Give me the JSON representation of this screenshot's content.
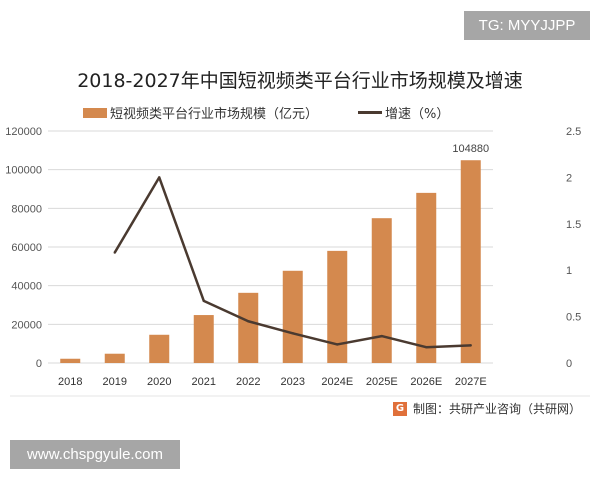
{
  "watermark_top": "TG: MYYJJPP",
  "watermark_bottom": "www.chspgyule.com",
  "source": "制图：共研产业咨询（共研网）",
  "source_logo": "G",
  "colors": {
    "bar": "#d4894e",
    "line": "#4a3a30",
    "grid": "#d9d9d9"
  },
  "chart_data": {
    "type": "bar+line",
    "title": "2018-2027年中国短视频类平台行业市场规模及增速",
    "categories": [
      "2018",
      "2019",
      "2020",
      "2021",
      "2022",
      "2023",
      "2024E",
      "2025E",
      "2026E",
      "2027E"
    ],
    "series": [
      {
        "name": "短视频类平台行业市场规模（亿元）",
        "type": "bar",
        "axis": "left",
        "values": [
          2200,
          4800,
          14600,
          24800,
          36300,
          47700,
          58000,
          74900,
          88000,
          104880
        ]
      },
      {
        "name": "增速（%）",
        "type": "line",
        "axis": "right",
        "values": [
          null,
          1.19,
          2.0,
          0.67,
          0.45,
          0.32,
          0.2,
          0.29,
          0.17,
          0.19
        ]
      }
    ],
    "data_labels": [
      {
        "category": "2027E",
        "text": "104880"
      }
    ],
    "left_axis": {
      "ylim": [
        0,
        120000
      ],
      "ticks": [
        "0",
        "20000",
        "40000",
        "60000",
        "80000",
        "100000",
        "120000"
      ]
    },
    "right_axis": {
      "ylim": [
        0,
        2.5
      ],
      "ticks": [
        "0",
        "0.5",
        "1",
        "1.5",
        "2",
        "2.5"
      ]
    },
    "grid": true,
    "legend": "top"
  }
}
